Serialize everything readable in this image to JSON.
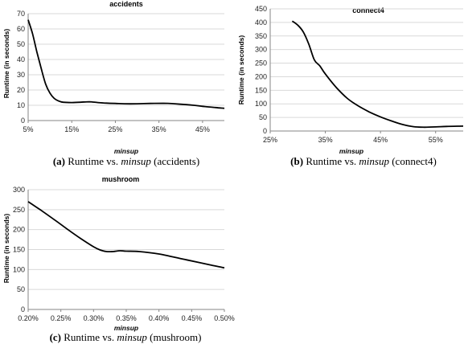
{
  "chart_data": [
    {
      "type": "line",
      "title": "accidents",
      "xlabel": "minsup",
      "ylabel": "Runtime (in seconds)",
      "xlim": [
        5,
        50
      ],
      "ylim": [
        0,
        70
      ],
      "x_ticks": [
        "5%",
        "15%",
        "25%",
        "35%",
        "45%"
      ],
      "y_ticks": [
        "0",
        "10",
        "20",
        "30",
        "40",
        "50",
        "60",
        "70"
      ],
      "x": [
        5,
        6,
        7,
        8,
        9,
        10,
        11,
        12,
        13,
        15,
        17,
        19,
        21,
        23,
        25,
        27,
        30,
        33,
        36,
        38,
        40,
        43,
        45,
        48,
        50
      ],
      "values": [
        66,
        57,
        45,
        34,
        24,
        18,
        14.5,
        12.8,
        12,
        11.8,
        12,
        12.3,
        11.8,
        11.4,
        11.2,
        11,
        11,
        11.2,
        11.3,
        11.1,
        10.7,
        10,
        9.3,
        8.5,
        8
      ],
      "caption": {
        "label": "(a)",
        "prefix": "Runtime vs. ",
        "emph": "minsup",
        "suffix": " (accidents)"
      }
    },
    {
      "type": "line",
      "title": "connect4",
      "xlabel": "minsup",
      "ylabel": "Runtime (in seconds)",
      "xlim": [
        25,
        60
      ],
      "ylim": [
        0,
        450
      ],
      "x_ticks": [
        "25%",
        "35%",
        "45%",
        "55%"
      ],
      "y_ticks": [
        "0",
        "50",
        "100",
        "150",
        "200",
        "250",
        "300",
        "350",
        "400",
        "450"
      ],
      "x": [
        29,
        30,
        31,
        32,
        33,
        34,
        35,
        37,
        39,
        41,
        43,
        45,
        47,
        49,
        51,
        53,
        55,
        57,
        60
      ],
      "values": [
        405,
        390,
        365,
        320,
        262,
        240,
        210,
        160,
        120,
        92,
        70,
        52,
        37,
        24,
        16,
        14,
        15,
        17,
        18
      ],
      "caption": {
        "label": "(b)",
        "prefix": "Runtime vs. ",
        "emph": "minsup",
        "suffix": " (connect4)"
      }
    },
    {
      "type": "line",
      "title": "mushroom",
      "xlabel": "minsup",
      "ylabel": "Runtime (in seconds)",
      "xlim": [
        0.2,
        0.5
      ],
      "ylim": [
        0,
        300
      ],
      "x_ticks": [
        "0.20%",
        "0.25%",
        "0.30%",
        "0.35%",
        "0.40%",
        "0.45%",
        "0.50%"
      ],
      "y_ticks": [
        "0",
        "50",
        "100",
        "150",
        "200",
        "250",
        "300"
      ],
      "x": [
        0.2,
        0.22,
        0.24,
        0.26,
        0.28,
        0.3,
        0.31,
        0.32,
        0.33,
        0.34,
        0.35,
        0.37,
        0.4,
        0.42,
        0.44,
        0.46,
        0.48,
        0.5
      ],
      "values": [
        270,
        248,
        225,
        201,
        178,
        157,
        149,
        145,
        145,
        147,
        146,
        145,
        139,
        132,
        125,
        118,
        111,
        104
      ],
      "caption": {
        "label": "(c)",
        "prefix": "Runtime vs. ",
        "emph": "minsup",
        "suffix": " (mushroom)"
      }
    }
  ]
}
